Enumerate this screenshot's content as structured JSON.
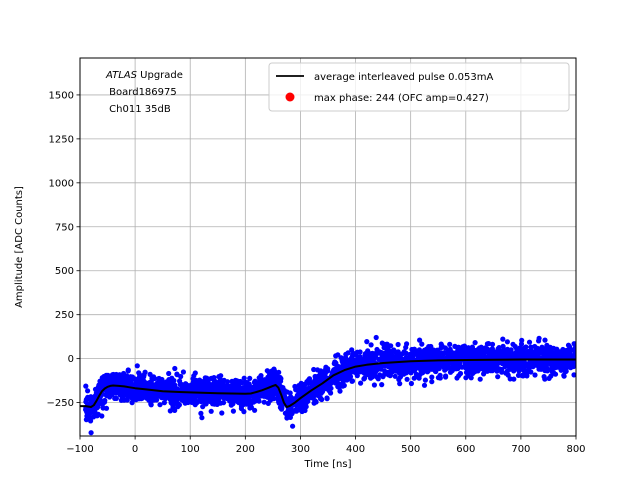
{
  "chart_data": {
    "type": "scatter",
    "xlabel": "Time [ns]",
    "ylabel": "Amplitude [ADC Counts]",
    "xlim": [
      -100,
      800
    ],
    "ylim": [
      -440,
      1710
    ],
    "xticks": [
      -100,
      0,
      100,
      200,
      300,
      400,
      500,
      600,
      700,
      800
    ],
    "yticks": [
      -250,
      0,
      250,
      500,
      750,
      1000,
      1250,
      1500
    ],
    "grid": true,
    "legend_position": "top-right",
    "annotation": {
      "line1_italic": "ATLAS",
      "line1_rest": " Upgrade",
      "line2": " Board186975",
      "line3": " Ch011 35dB"
    },
    "series": [
      {
        "name": "average interleaved pulse 0.053mA",
        "kind": "line",
        "color": "#000000",
        "x": [
          -100,
          -90,
          -80,
          -75,
          -70,
          -65,
          -60,
          -55,
          -50,
          -45,
          -40,
          -30,
          -20,
          -10,
          0,
          20,
          50,
          80,
          100,
          150,
          200,
          210,
          220,
          230,
          240,
          250,
          255,
          260,
          265,
          270,
          275,
          280,
          290,
          300,
          320,
          340,
          360,
          380,
          400,
          420,
          450,
          500,
          550,
          600,
          650,
          700,
          750,
          800
        ],
        "y": [
          -270,
          -270,
          -275,
          -265,
          -240,
          -210,
          -185,
          -170,
          -160,
          -155,
          -153,
          -155,
          -158,
          -163,
          -168,
          -175,
          -185,
          -190,
          -192,
          -197,
          -200,
          -198,
          -190,
          -180,
          -168,
          -155,
          -150,
          -165,
          -205,
          -250,
          -275,
          -270,
          -250,
          -225,
          -180,
          -140,
          -95,
          -65,
          -45,
          -35,
          -25,
          -15,
          -10,
          -8,
          -6,
          -5,
          -5,
          -5
        ]
      },
      {
        "name": "max phase: 244 (OFC amp=0.427)",
        "kind": "marker",
        "color": "#ff0000",
        "x": [],
        "y": []
      },
      {
        "name": "samples",
        "kind": "scatter",
        "color": "#0000ff",
        "noise_sd": 42
      }
    ]
  }
}
